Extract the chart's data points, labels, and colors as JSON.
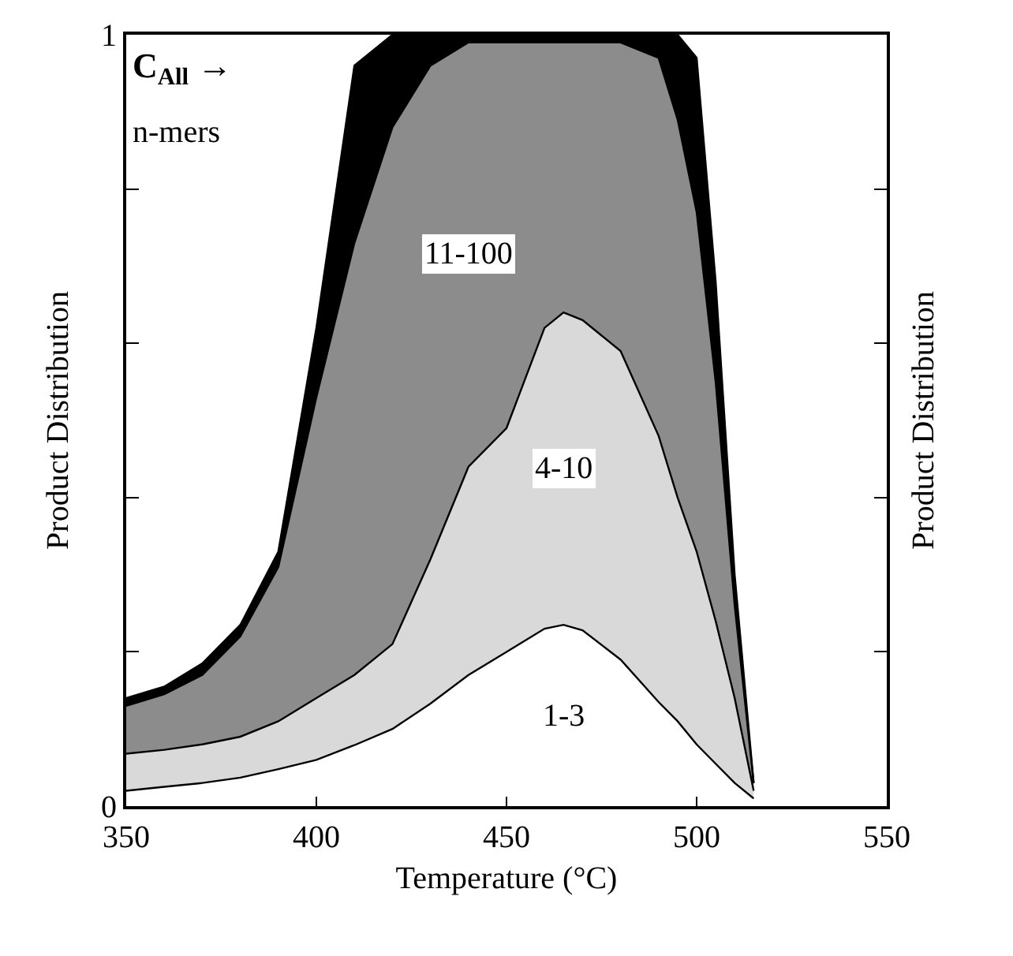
{
  "chart_data": {
    "type": "area",
    "stacked": true,
    "xlabel": "Temperature (°C)",
    "ylabel": "Product Distribution",
    "y2label": "Product Distribution",
    "x": [
      350,
      360,
      370,
      380,
      390,
      400,
      410,
      420,
      430,
      440,
      450,
      460,
      465,
      470,
      480,
      490,
      495,
      500,
      505,
      510,
      515
    ],
    "series": [
      {
        "name": "1-3",
        "color": "#ffffff",
        "values": [
          0.02,
          0.025,
          0.03,
          0.037,
          0.048,
          0.06,
          0.079,
          0.1,
          0.133,
          0.17,
          0.2,
          0.23,
          0.235,
          0.228,
          0.19,
          0.135,
          0.11,
          0.08,
          0.055,
          0.03,
          0.01
        ]
      },
      {
        "name": "4-10",
        "color": "#d9d9d9",
        "values": [
          0.048,
          0.048,
          0.05,
          0.053,
          0.062,
          0.08,
          0.091,
          0.11,
          0.187,
          0.27,
          0.29,
          0.39,
          0.405,
          0.402,
          0.4,
          0.345,
          0.29,
          0.25,
          0.185,
          0.11,
          0.01
        ]
      },
      {
        "name": "11-100",
        "color": "#8c8c8c",
        "values": [
          0.062,
          0.072,
          0.09,
          0.13,
          0.2,
          0.39,
          0.56,
          0.67,
          0.64,
          0.55,
          0.5,
          0.37,
          0.35,
          0.36,
          0.4,
          0.49,
          0.49,
          0.44,
          0.31,
          0.12,
          0.01
        ]
      },
      {
        "color": "#000000",
        "values": [
          0.01,
          0.01,
          0.015,
          0.015,
          0.02,
          0.09,
          0.23,
          0.12,
          0.04,
          0.01,
          0.01,
          0.01,
          0.01,
          0.01,
          0.01,
          0.03,
          0.11,
          0.2,
          0.13,
          0.04,
          0
        ]
      }
    ],
    "xlim": [
      350,
      550
    ],
    "xticks": [
      350,
      400,
      450,
      500,
      550
    ],
    "ylim": [
      0,
      1
    ],
    "yticks": [
      0,
      {
        "value": 0.2,
        "label": null
      },
      {
        "value": 0.4,
        "label": null
      },
      {
        "value": 0.6,
        "label": null
      },
      {
        "value": 0.8,
        "label": null
      },
      1
    ],
    "annotations": [
      "C$_{All}$ →",
      "n-mers"
    ]
  }
}
